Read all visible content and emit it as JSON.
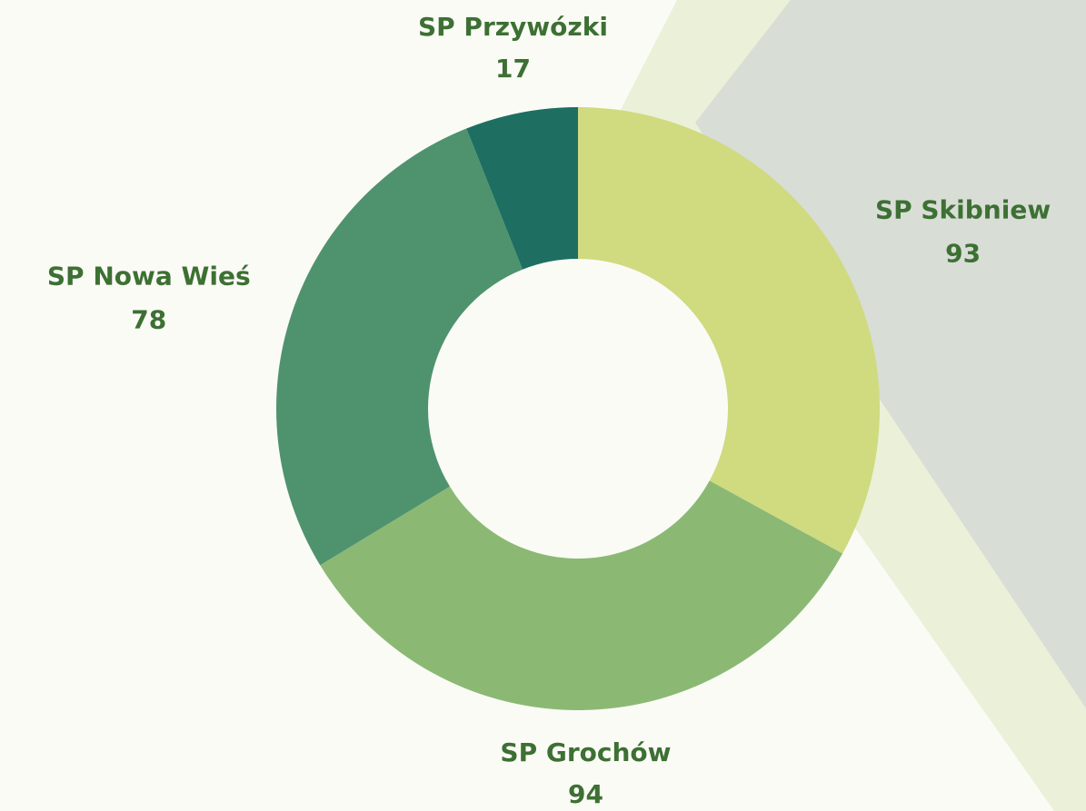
{
  "chart_data": {
    "type": "donut",
    "categories": [
      "SP Skibniew",
      "SP Grochów",
      "SP Nowa Wieś",
      "SP Przywózki"
    ],
    "values": [
      93,
      94,
      78,
      17
    ],
    "colors": [
      "#d0da7f",
      "#8bb974",
      "#4f936e",
      "#1e6f62"
    ]
  }
}
